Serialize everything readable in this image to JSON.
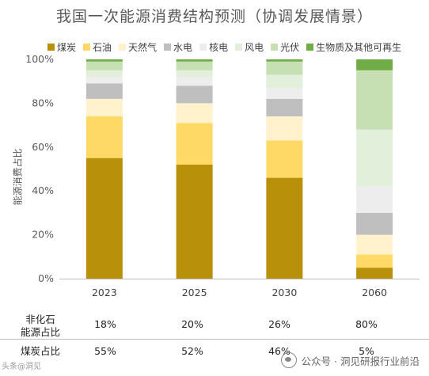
{
  "chart_data": {
    "type": "bar",
    "stacked": true,
    "title": "我国一次能源消费结构预测（协调发展情景）",
    "ylabel": "能源消费占比",
    "ylim": [
      0,
      100
    ],
    "yticks": [
      "0%",
      "20%",
      "40%",
      "60%",
      "80%",
      "100%"
    ],
    "categories": [
      "2023",
      "2025",
      "2030",
      "2060"
    ],
    "legend_position": "top",
    "series": [
      {
        "name": "煤炭",
        "color": "#B8900A",
        "values": [
          55,
          52,
          46,
          5
        ]
      },
      {
        "name": "石油",
        "color": "#FFD966",
        "values": [
          19,
          19,
          17,
          6
        ]
      },
      {
        "name": "天然气",
        "color": "#FFF2CC",
        "values": [
          8,
          9,
          11,
          9
        ]
      },
      {
        "name": "水电",
        "color": "#BFBFBF",
        "values": [
          7,
          8,
          8,
          10
        ]
      },
      {
        "name": "核电",
        "color": "#EDEDED",
        "values": [
          3,
          4,
          5,
          12
        ]
      },
      {
        "name": "风电",
        "color": "#E2EFDA",
        "values": [
          3,
          3,
          6,
          26
        ]
      },
      {
        "name": "光伏",
        "color": "#C6E0B4",
        "values": [
          4,
          4,
          6,
          27
        ]
      },
      {
        "name": "生物质及其他可再生",
        "color": "#70AD47",
        "values": [
          1,
          1,
          1,
          5
        ]
      }
    ]
  },
  "table": {
    "rows": [
      {
        "label": "非化石\n能源占比",
        "values": [
          "18%",
          "20%",
          "26%",
          "80%"
        ]
      },
      {
        "label": "煤炭占比",
        "values": [
          "55%",
          "52%",
          "46%",
          "5%"
        ]
      }
    ]
  },
  "watermark": {
    "text": "公众号 · 洞见研报行业前沿",
    "left_text": "头条@洞见"
  }
}
